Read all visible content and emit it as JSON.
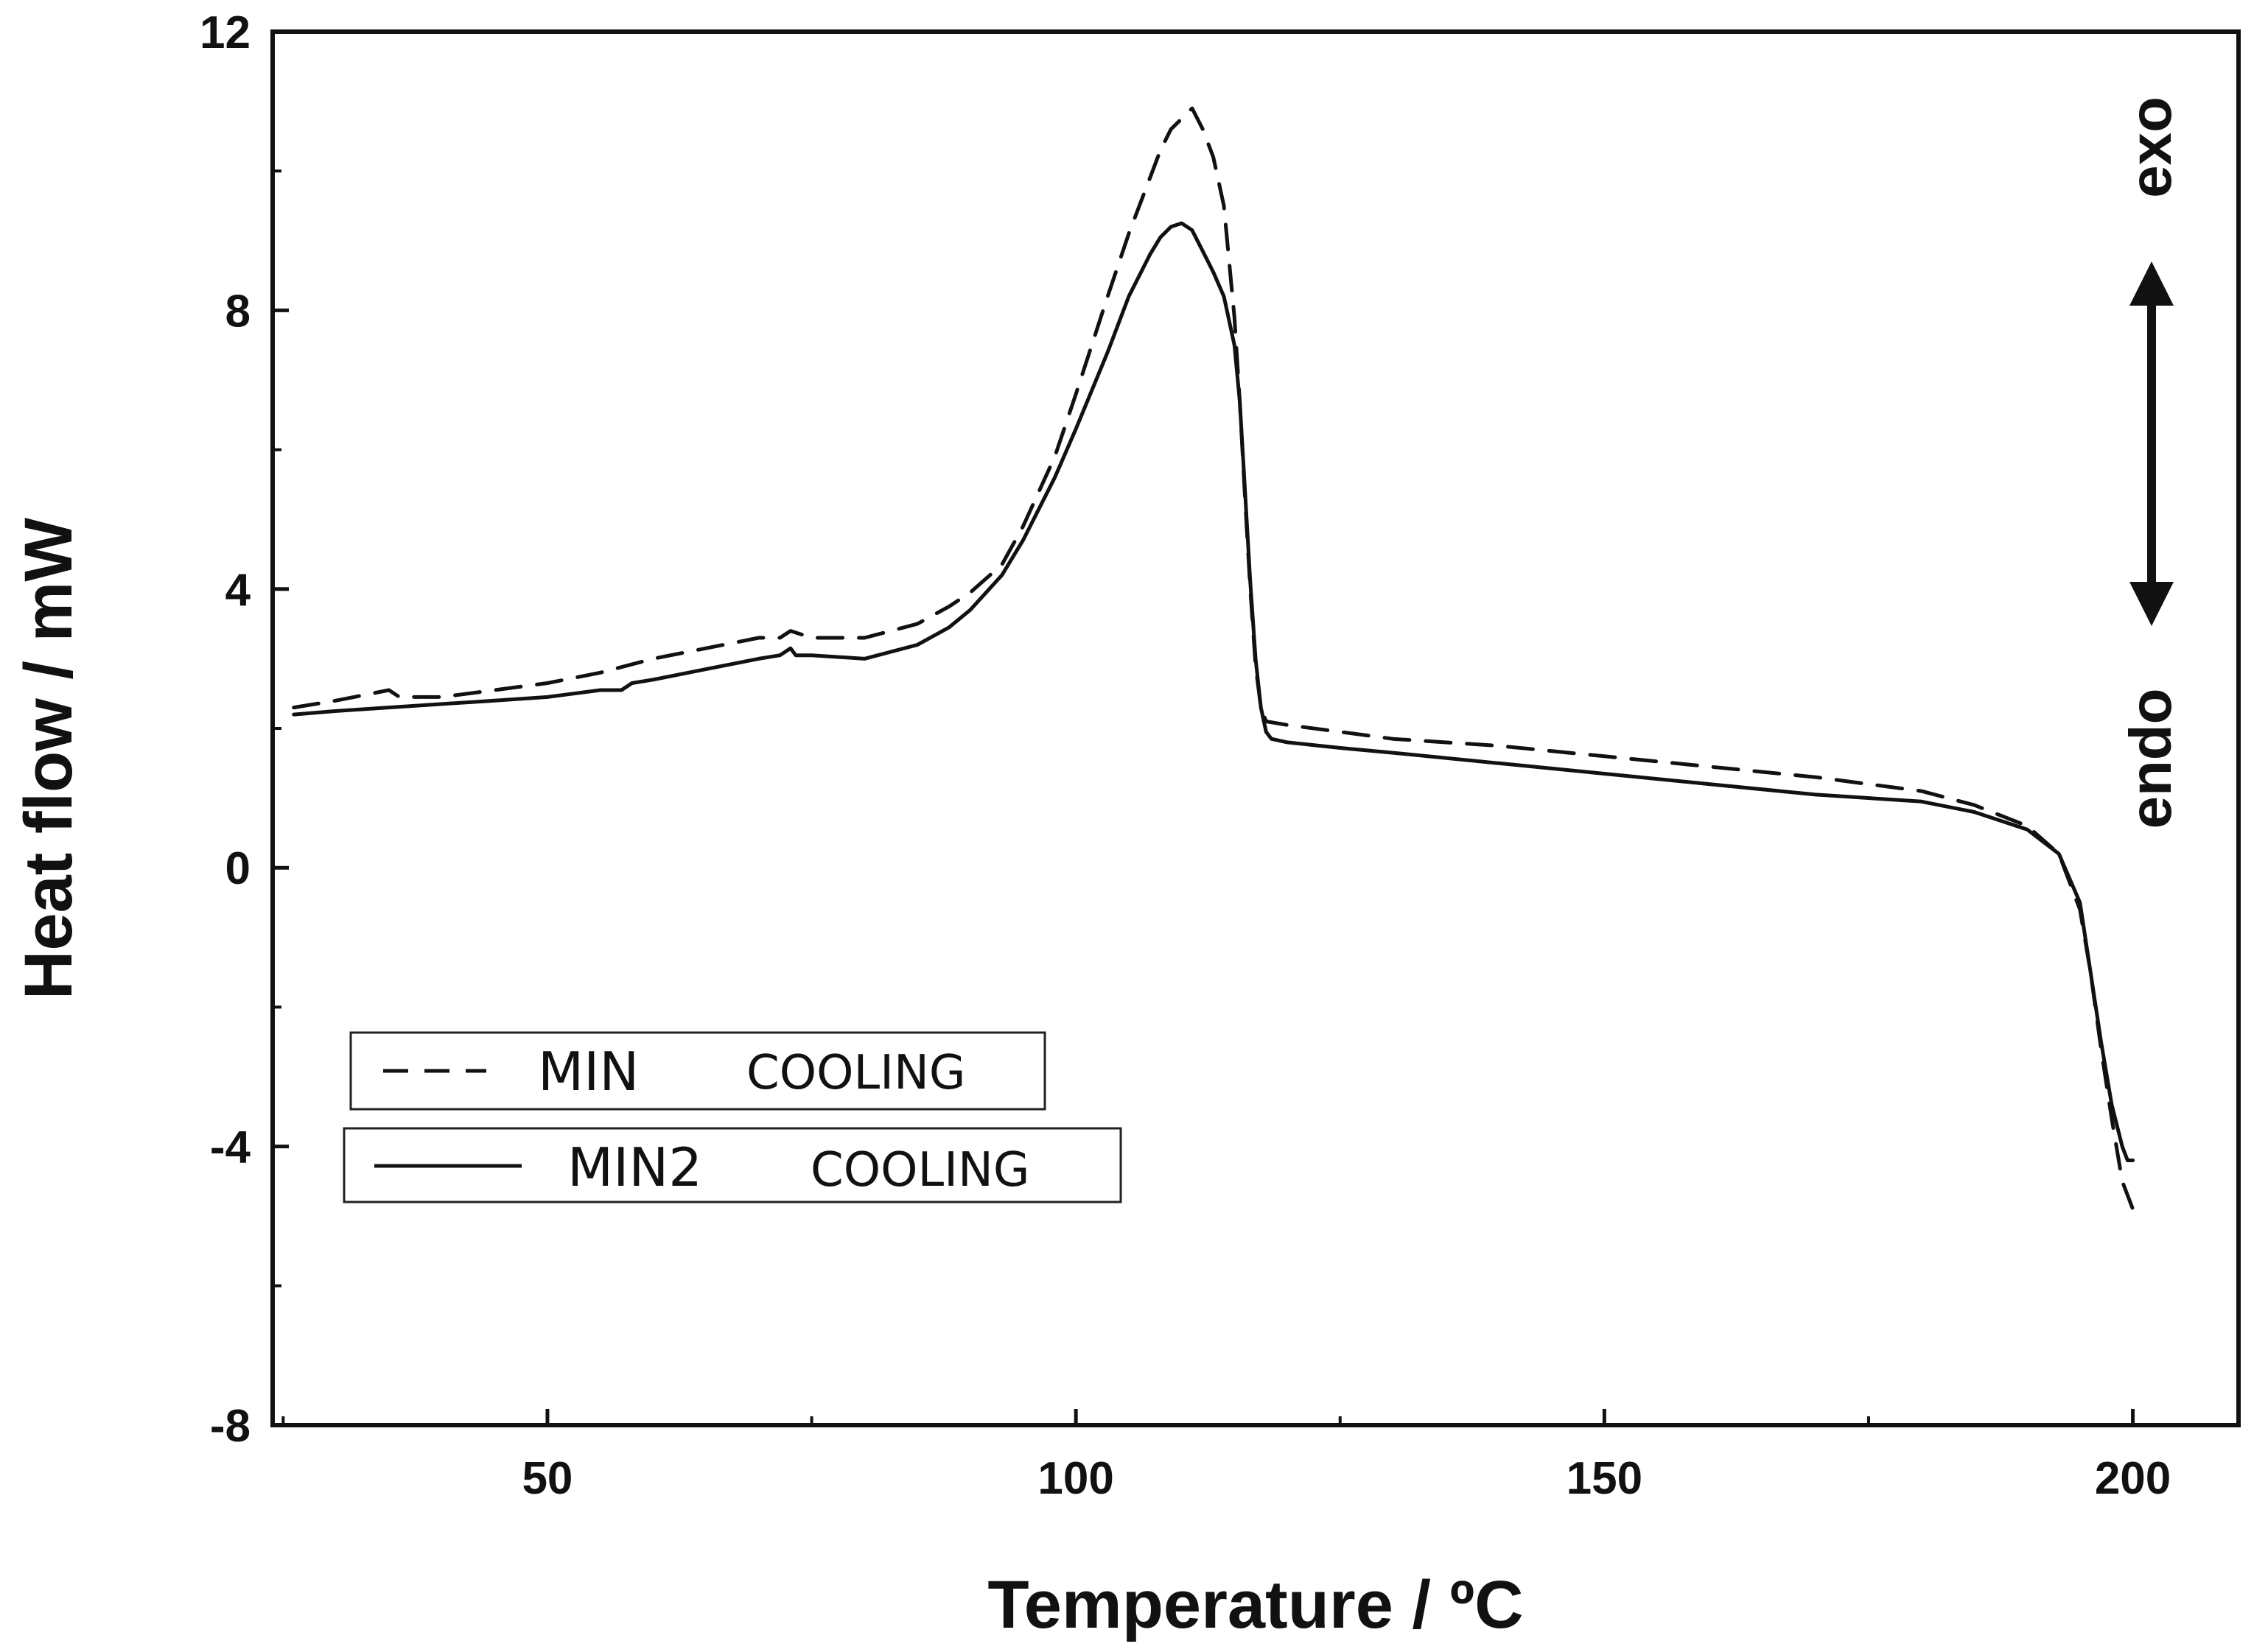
{
  "chart_data": {
    "type": "line",
    "title": "",
    "xlabel": "Temperature / ºC",
    "ylabel": "Heat flow / mW",
    "xlim": [
      24.0,
      210.0
    ],
    "ylim": [
      -8,
      12
    ],
    "xticks": [
      50,
      100,
      150,
      200
    ],
    "xtick_labels": [
      "50",
      "100",
      "150",
      "200"
    ],
    "xminor": [
      25,
      75,
      125,
      175
    ],
    "yticks": [
      -8,
      -4,
      0,
      4,
      8,
      12
    ],
    "ytick_labels": [
      "-8",
      "-4",
      "0",
      "4",
      "8",
      "12"
    ],
    "yminor": [
      -6,
      -2,
      2,
      6,
      10
    ],
    "grid": false,
    "legend_position": "lower-left",
    "legend": [
      {
        "name": "MIN",
        "sub": "COOLING",
        "style": "dashed"
      },
      {
        "name": "MIN2",
        "sub": "COOLING",
        "style": "solid"
      }
    ],
    "annotations": {
      "top": "exo",
      "bottom": "endo"
    },
    "series": [
      {
        "name": "MIN",
        "style": "dashed",
        "x": [
          26,
          30,
          35,
          36,
          40,
          45,
          50,
          55,
          60,
          65,
          70,
          72,
          73,
          75,
          80,
          85,
          88,
          90,
          93,
          95,
          98,
          100,
          103,
          105,
          107,
          108,
          109,
          110,
          111,
          112,
          113,
          114,
          115,
          115.5,
          116,
          116.5,
          117,
          117.5,
          118,
          120,
          125,
          130,
          140,
          150,
          160,
          170,
          180,
          185,
          190,
          193,
          195,
          196,
          197,
          198,
          199,
          200
        ],
        "y": [
          2.3,
          2.4,
          2.55,
          2.45,
          2.45,
          2.55,
          2.65,
          2.8,
          3.0,
          3.15,
          3.3,
          3.3,
          3.4,
          3.3,
          3.3,
          3.5,
          3.75,
          3.95,
          4.35,
          4.9,
          5.9,
          6.8,
          8.2,
          9.1,
          9.9,
          10.3,
          10.6,
          10.75,
          10.9,
          10.6,
          10.2,
          9.5,
          7.9,
          6.7,
          5.3,
          4.0,
          2.9,
          2.3,
          2.1,
          2.05,
          1.95,
          1.85,
          1.75,
          1.6,
          1.45,
          1.3,
          1.1,
          0.9,
          0.6,
          0.2,
          -0.6,
          -1.5,
          -2.6,
          -3.6,
          -4.5,
          -4.9
        ]
      },
      {
        "name": "MIN2",
        "style": "solid",
        "x": [
          26,
          30,
          35,
          40,
          45,
          50,
          55,
          57,
          58,
          60,
          65,
          70,
          72,
          73,
          73.5,
          75,
          80,
          85,
          88,
          90,
          93,
          95,
          98,
          100,
          103,
          105,
          107,
          108,
          109,
          110,
          111,
          112,
          113,
          114,
          115,
          115.5,
          116,
          116.5,
          117,
          117.5,
          118,
          118.5,
          120,
          125,
          130,
          140,
          150,
          160,
          170,
          180,
          185,
          190,
          193,
          195,
          196,
          197,
          198,
          199,
          199.5,
          200
        ],
        "y": [
          2.2,
          2.25,
          2.3,
          2.35,
          2.4,
          2.45,
          2.55,
          2.55,
          2.65,
          2.7,
          2.85,
          3.0,
          3.05,
          3.15,
          3.05,
          3.05,
          3.0,
          3.2,
          3.45,
          3.7,
          4.2,
          4.7,
          5.6,
          6.3,
          7.4,
          8.2,
          8.8,
          9.05,
          9.2,
          9.25,
          9.15,
          8.85,
          8.55,
          8.2,
          7.5,
          6.7,
          5.4,
          4.1,
          3.0,
          2.3,
          1.95,
          1.85,
          1.8,
          1.72,
          1.65,
          1.5,
          1.35,
          1.2,
          1.05,
          0.95,
          0.8,
          0.55,
          0.2,
          -0.5,
          -1.5,
          -2.5,
          -3.4,
          -4.0,
          -4.2,
          -4.2
        ]
      }
    ]
  }
}
